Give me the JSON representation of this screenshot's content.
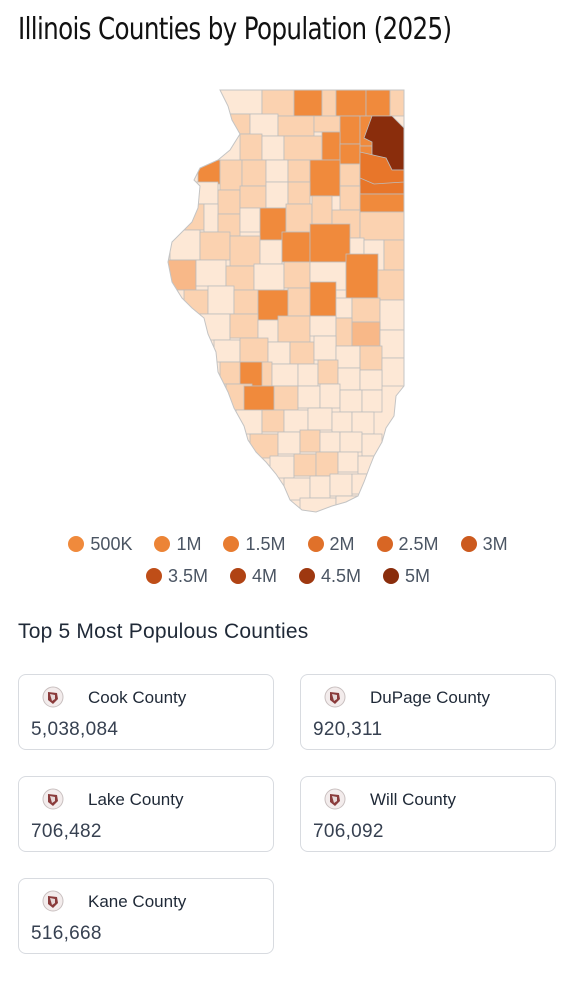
{
  "title": "Illinois Counties by Population (2025)",
  "legend": {
    "rows": [
      [
        {
          "label": "500K",
          "color": "#f08a3c"
        },
        {
          "label": "1M",
          "color": "#ec8436"
        },
        {
          "label": "1.5M",
          "color": "#e87c30"
        },
        {
          "label": "2M",
          "color": "#e0712a"
        },
        {
          "label": "2.5M",
          "color": "#d86624"
        },
        {
          "label": "3M",
          "color": "#cc5a1e"
        }
      ],
      [
        {
          "label": "3.5M",
          "color": "#bf4e18"
        },
        {
          "label": "4M",
          "color": "#b04314"
        },
        {
          "label": "4.5M",
          "color": "#9e3810"
        },
        {
          "label": "5M",
          "color": "#8a2d0c"
        }
      ]
    ]
  },
  "section_title": "Top 5 Most Populous Counties",
  "counties": [
    {
      "name": "Cook County",
      "population": "5,038,084"
    },
    {
      "name": "DuPage County",
      "population": "920,311"
    },
    {
      "name": "Lake County",
      "population": "706,482"
    },
    {
      "name": "Will County",
      "population": "706,092"
    },
    {
      "name": "Kane County",
      "population": "516,668"
    }
  ],
  "map": {
    "colors": {
      "border": "#bdbdbd",
      "lightest": "#fde8d6",
      "light": "#fbd2b0",
      "medium": "#f8b888",
      "orange": "#f08a3c",
      "dark": "#e8762a",
      "cook": "#8a2d0c"
    }
  }
}
